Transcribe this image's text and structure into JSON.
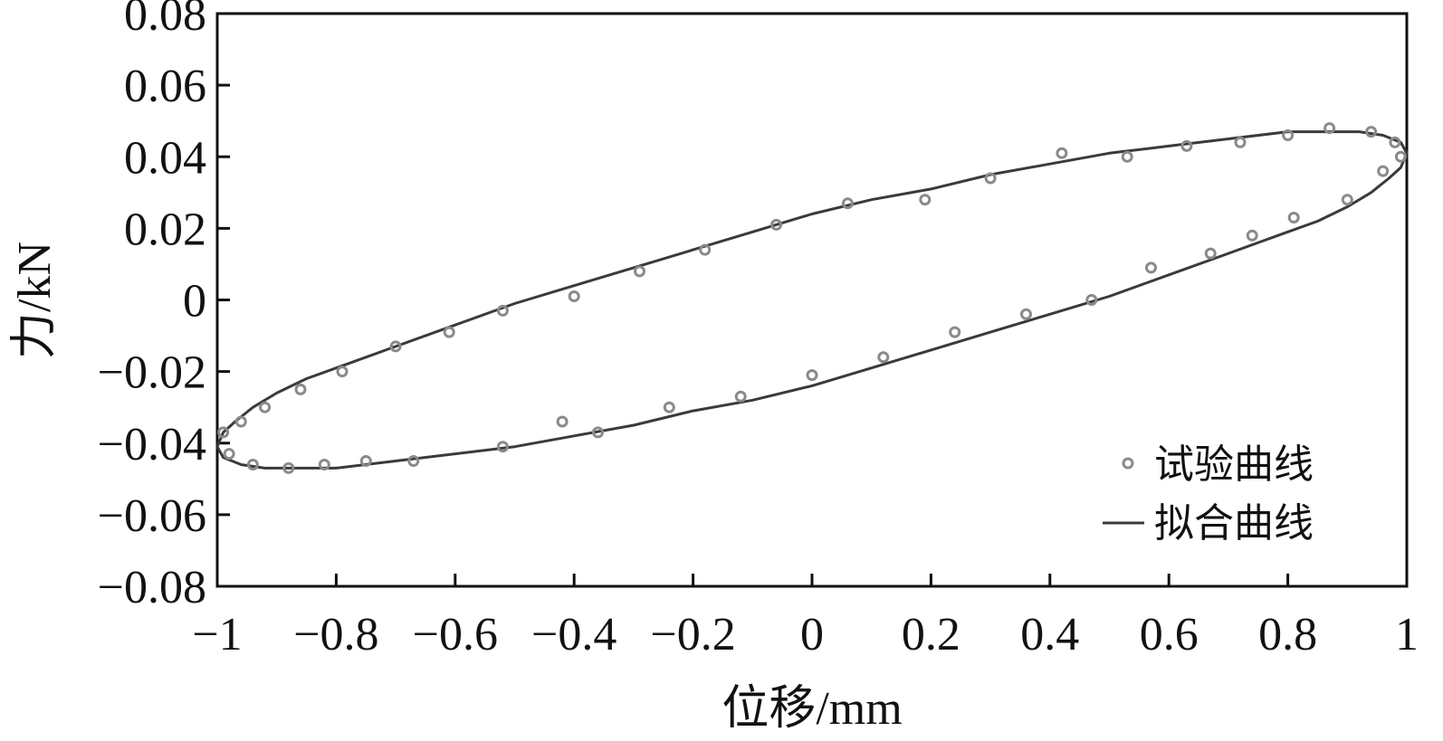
{
  "chart_data": {
    "type": "scatter",
    "xlabel": "位移/mm",
    "ylabel": "力/kN",
    "xlim": [
      -1,
      1
    ],
    "ylim": [
      -0.08,
      0.08
    ],
    "x_ticks": [
      -1,
      -0.8,
      -0.6,
      -0.4,
      -0.2,
      0,
      0.2,
      0.4,
      0.6,
      0.8,
      1
    ],
    "x_tick_labels": [
      "−1",
      "−0.8",
      "−0.6",
      "−0.4",
      "−0.2",
      "0",
      "0.2",
      "0.4",
      "0.6",
      "0.8",
      "1"
    ],
    "y_ticks": [
      0.08,
      0.06,
      0.04,
      0.02,
      0,
      -0.02,
      -0.04,
      -0.06,
      -0.08
    ],
    "y_tick_labels": [
      "0.08",
      "0.06",
      "0.04",
      "0.02",
      "0",
      "−0.02",
      "−0.04",
      "−0.06",
      "−0.08"
    ],
    "grid": false,
    "legend_position": "bottom-right",
    "legend": [
      {
        "label": "试验曲线",
        "marker": "circle"
      },
      {
        "label": "拟合曲线",
        "marker": "line"
      }
    ],
    "colors": {
      "marker": "#8a8a8a",
      "line": "#3a3a3a",
      "axis": "#111111"
    },
    "series": [
      {
        "label_ref": 0,
        "kind": "scatter",
        "x": [
          -0.99,
          -0.96,
          -0.92,
          -0.86,
          -0.79,
          -0.7,
          -0.61,
          -0.52,
          -0.4,
          -0.29,
          -0.18,
          -0.06,
          0.06,
          0.19,
          0.3,
          0.42,
          0.53,
          0.63,
          0.72,
          0.8,
          0.87,
          0.94,
          0.98,
          0.99,
          0.96,
          0.9,
          0.81,
          0.74,
          0.67,
          0.57,
          0.47,
          0.36,
          0.24,
          0.12,
          0.0,
          -0.12,
          -0.24,
          -0.36,
          -0.42,
          -0.52,
          -0.67,
          -0.75,
          -0.82,
          -0.88,
          -0.94,
          -0.98
        ],
        "y": [
          -0.037,
          -0.034,
          -0.03,
          -0.025,
          -0.02,
          -0.013,
          -0.009,
          -0.003,
          0.001,
          0.008,
          0.014,
          0.021,
          0.027,
          0.028,
          0.034,
          0.041,
          0.04,
          0.043,
          0.044,
          0.046,
          0.048,
          0.047,
          0.044,
          0.04,
          0.036,
          0.028,
          0.023,
          0.018,
          0.013,
          0.009,
          0.0,
          -0.004,
          -0.009,
          -0.016,
          -0.021,
          -0.027,
          -0.03,
          -0.037,
          -0.034,
          -0.041,
          -0.045,
          -0.045,
          -0.046,
          -0.047,
          -0.046,
          -0.043
        ]
      },
      {
        "label_ref": 1,
        "kind": "line",
        "x": [
          -1.0,
          -0.99,
          -0.97,
          -0.94,
          -0.9,
          -0.85,
          -0.8,
          -0.7,
          -0.6,
          -0.5,
          -0.4,
          -0.3,
          -0.2,
          -0.1,
          0.0,
          0.1,
          0.2,
          0.3,
          0.4,
          0.5,
          0.6,
          0.7,
          0.8,
          0.86,
          0.92,
          0.96,
          0.99,
          1.0,
          0.99,
          0.97,
          0.94,
          0.9,
          0.85,
          0.8,
          0.7,
          0.6,
          0.5,
          0.4,
          0.3,
          0.2,
          0.1,
          0.0,
          -0.1,
          -0.2,
          -0.3,
          -0.4,
          -0.5,
          -0.6,
          -0.7,
          -0.8,
          -0.86,
          -0.92,
          -0.96,
          -0.99,
          -1.0
        ],
        "y": [
          -0.041,
          -0.037,
          -0.034,
          -0.03,
          -0.026,
          -0.022,
          -0.019,
          -0.013,
          -0.007,
          -0.001,
          0.004,
          0.009,
          0.014,
          0.019,
          0.024,
          0.028,
          0.031,
          0.035,
          0.038,
          0.041,
          0.043,
          0.045,
          0.047,
          0.047,
          0.047,
          0.046,
          0.044,
          0.041,
          0.037,
          0.034,
          0.03,
          0.026,
          0.022,
          0.019,
          0.013,
          0.007,
          0.001,
          -0.004,
          -0.009,
          -0.014,
          -0.019,
          -0.024,
          -0.028,
          -0.031,
          -0.035,
          -0.038,
          -0.041,
          -0.043,
          -0.045,
          -0.047,
          -0.047,
          -0.047,
          -0.046,
          -0.044,
          -0.041
        ]
      }
    ]
  }
}
